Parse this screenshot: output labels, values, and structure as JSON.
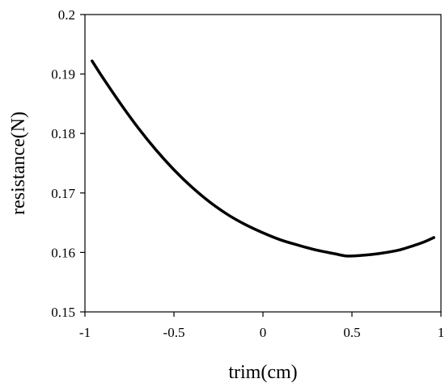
{
  "chart_data": {
    "type": "line",
    "title": "",
    "xlabel": "trim(cm)",
    "ylabel": "resistance(N)",
    "xlim": [
      -1,
      1
    ],
    "ylim": [
      0.15,
      0.2
    ],
    "xticks": [
      -1,
      -0.5,
      0,
      0.5,
      1
    ],
    "yticks": [
      0.15,
      0.16,
      0.17,
      0.18,
      0.19,
      0.2
    ],
    "xtick_labels": [
      "-1",
      "-0.5",
      "0",
      "0.5",
      "1"
    ],
    "ytick_labels": [
      "0.15",
      "0.16",
      "0.17",
      "0.18",
      "0.19",
      "0.2"
    ],
    "grid": false,
    "legend": "none",
    "line_color": "#000000",
    "series": [
      {
        "x": [
          -0.96,
          -0.9,
          -0.8,
          -0.7,
          -0.6,
          -0.5,
          -0.4,
          -0.3,
          -0.2,
          -0.1,
          0.0,
          0.1,
          0.2,
          0.3,
          0.4,
          0.47,
          0.55,
          0.65,
          0.75,
          0.8,
          0.9,
          0.96
        ],
        "y": [
          0.1922,
          0.1894,
          0.185,
          0.1809,
          0.1772,
          0.1739,
          0.171,
          0.1685,
          0.1664,
          0.1647,
          0.1633,
          0.1621,
          0.1612,
          0.1604,
          0.1598,
          0.1594,
          0.1595,
          0.1598,
          0.1603,
          0.1607,
          0.1617,
          0.1625
        ]
      }
    ]
  }
}
